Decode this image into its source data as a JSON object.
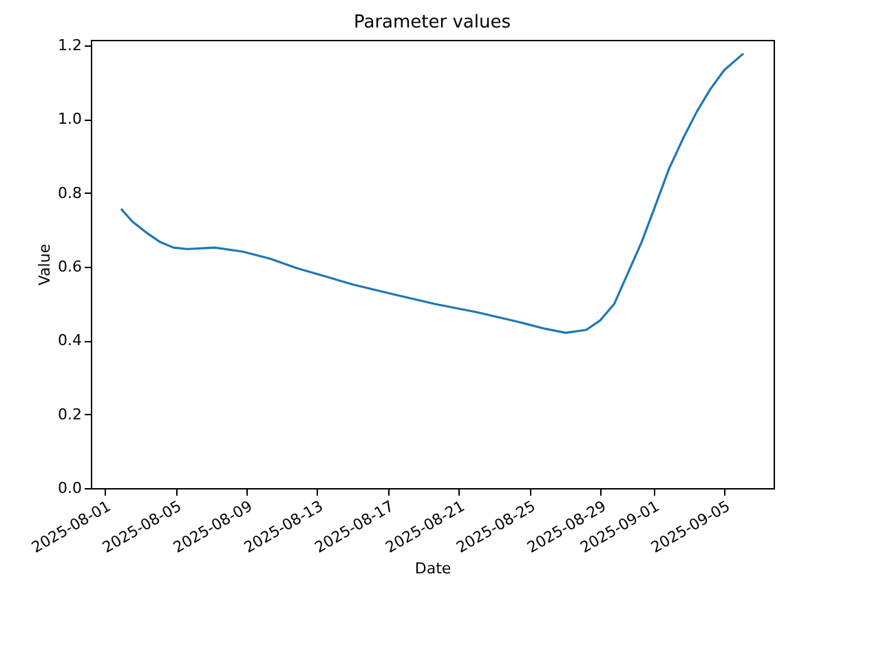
{
  "chart_data": {
    "type": "line",
    "title": "Parameter values",
    "xlabel": "Date",
    "ylabel": "Value",
    "x": [
      "2025-08-01T22:00",
      "2025-08-02T13:00",
      "2025-08-03T08:00",
      "2025-08-04T03:00",
      "2025-08-04T21:00",
      "2025-08-05T16:00",
      "2025-08-07T05:00",
      "2025-08-08T19:00",
      "2025-08-10T08:00",
      "2025-08-11T21:00",
      "2025-08-13T11:00",
      "2025-08-15T00:00",
      "2025-08-17T08:00",
      "2025-08-19T16:00",
      "2025-08-22T00:00",
      "2025-08-24T08:00",
      "2025-08-25T21:00",
      "2025-08-27T01:00",
      "2025-08-28T05:00",
      "2025-08-29T00:00",
      "2025-08-29T19:00",
      "2025-08-30T13:00",
      "2025-08-31T08:00",
      "2025-09-01T03:00",
      "2025-09-01T21:00",
      "2025-09-02T16:00",
      "2025-09-03T11:00",
      "2025-09-04T05:00",
      "2025-09-05T00:00",
      "2025-09-06T02:00"
    ],
    "series": [
      {
        "color": "#1f77b4",
        "values": [
          0.757,
          0.723,
          0.693,
          0.667,
          0.652,
          0.648,
          0.652,
          0.641,
          0.622,
          0.596,
          0.574,
          0.552,
          0.525,
          0.499,
          0.477,
          0.451,
          0.432,
          0.421,
          0.429,
          0.455,
          0.5,
          0.581,
          0.667,
          0.768,
          0.865,
          0.947,
          1.021,
          1.081,
          1.133,
          1.178
        ]
      }
    ],
    "xlim": [
      "2025-07-31T05:00",
      "2025-09-07T19:00"
    ],
    "xticks": [
      "2025-08-01",
      "2025-08-05",
      "2025-08-09",
      "2025-08-13",
      "2025-08-17",
      "2025-08-21",
      "2025-08-25",
      "2025-08-29",
      "2025-09-01",
      "2025-09-05"
    ],
    "ylim": [
      0,
      1.215
    ],
    "yticks": [
      {
        "value": 0,
        "label": "0.0"
      },
      {
        "value": 0.2,
        "label": "0.2"
      },
      {
        "value": 0.4,
        "label": "0.4"
      },
      {
        "value": 0.6,
        "label": "0.6"
      },
      {
        "value": 0.8,
        "label": "0.8"
      },
      {
        "value": 1.0,
        "label": "1.0"
      },
      {
        "value": 1.2,
        "label": "1.2"
      }
    ],
    "grid": false,
    "marker": "none",
    "line_style": "solid"
  }
}
